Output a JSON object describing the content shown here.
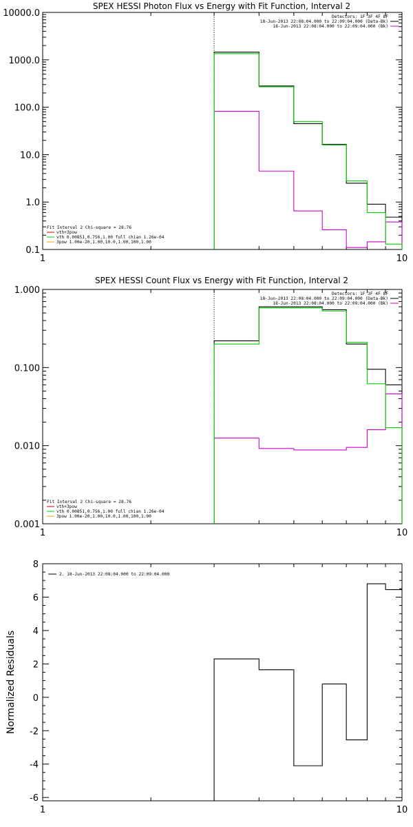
{
  "chart_data": [
    {
      "type": "line",
      "title": "SPEX HESSI Photon Flux vs Energy with Fit Function, Interval 2",
      "xscale": "log",
      "yscale": "log",
      "xlim": [
        1,
        10
      ],
      "ylim": [
        0.1,
        10000
      ],
      "xtick_labels": [
        "1",
        "10"
      ],
      "ytick_labels": [
        "0.1",
        "1.0",
        "10.0",
        "100.0",
        "1000.0",
        "10000.0"
      ],
      "vline_x": 3.0,
      "legend_top_right": [
        {
          "text": "Detectors: 1F 3F 4F 8F",
          "color": "#000000"
        },
        {
          "text": "18-Jun-2013 22:08:04.000 to 22:09:04.000 (Data-Bk)",
          "color": "#000000"
        },
        {
          "text": "18-Jun-2013 22:08:04.000 to 22:09:04.000 (Bk)",
          "color": "#cc00cc"
        }
      ],
      "legend_bottom_left": [
        {
          "text": "Fit Interval  2   Chi-square = 28.76",
          "color": "#000000"
        },
        {
          "text": "vth+3pow",
          "color": "#cc0000"
        },
        {
          "text": "vth 0.00851,0.756,1.00   full chian 1.26e-04",
          "color": "#00cc00"
        },
        {
          "text": "3pow 1.00e-20,1.00,10.0,1.00,100,1.00",
          "color": "#ddaa00"
        }
      ],
      "bin_edges": [
        3.0,
        4.0,
        5.0,
        6.0,
        7.0,
        8.0,
        9.0,
        10.0
      ],
      "series": [
        {
          "name": "Data-Bk",
          "color": "#000000",
          "values": [
            1450,
            280,
            45,
            16.5,
            2.5,
            0.9,
            0.48
          ]
        },
        {
          "name": "Bk",
          "color": "#cc00cc",
          "values": [
            82,
            4.5,
            0.65,
            0.26,
            0.11,
            0.145,
            0.38
          ]
        },
        {
          "name": "vth 0.00851,0.756,1.00   full chian 1.26e-04",
          "color": "#00cc00",
          "values": [
            1350,
            270,
            50,
            16.0,
            2.8,
            0.6,
            0.13
          ]
        }
      ]
    },
    {
      "type": "line",
      "title": "SPEX HESSI Count Flux vs Energy with Fit Function, Interval 2",
      "xscale": "log",
      "yscale": "log",
      "xlim": [
        1,
        10
      ],
      "ylim": [
        0.001,
        1
      ],
      "xtick_labels": [
        "1",
        "10"
      ],
      "ytick_labels": [
        "0.001",
        "0.010",
        "0.100",
        "1.000"
      ],
      "vline_x": 3.0,
      "legend_top_right": [
        {
          "text": "Detectors: 1F 3F 4F 8F",
          "color": "#000000"
        },
        {
          "text": "18-Jun-2013 22:08:04.000 to 22:09:04.000 (Data-Bk)",
          "color": "#000000"
        },
        {
          "text": "18-Jun-2013 22:08:04.000 to 22:09:04.000 (Bk)",
          "color": "#cc00cc"
        }
      ],
      "legend_bottom_left": [
        {
          "text": "Fit Interval  2   Chi-square = 28.76",
          "color": "#000000"
        },
        {
          "text": "vth+3pow",
          "color": "#cc0000"
        },
        {
          "text": "vth 0.00851,0.756,1.00   full chian 1.26e-04",
          "color": "#00cc00"
        },
        {
          "text": "3pow 1.00e-20,1.00,10.0,1.00,100,1.00",
          "color": "#ddaa00"
        }
      ],
      "bin_edges": [
        3.0,
        4.0,
        5.0,
        6.0,
        7.0,
        8.0,
        9.0,
        10.0
      ],
      "series": [
        {
          "name": "Data-Bk",
          "color": "#000000",
          "values": [
            0.22,
            0.6,
            0.6,
            0.55,
            0.2,
            0.095,
            0.06
          ]
        },
        {
          "name": "Bk",
          "color": "#cc00cc",
          "values": [
            0.0125,
            0.0092,
            0.0088,
            0.0088,
            0.0095,
            0.016,
            0.046
          ]
        },
        {
          "name": "vth 0.00851,0.756,1.00   full chian 1.26e-04",
          "color": "#00cc00",
          "values": [
            0.2,
            0.58,
            0.58,
            0.53,
            0.21,
            0.062,
            0.017
          ]
        }
      ]
    },
    {
      "type": "line",
      "title": "",
      "xscale": "log",
      "yscale": "linear",
      "xlim": [
        1,
        10
      ],
      "ylim": [
        -6.2,
        8
      ],
      "ylabel": "Normalized Residuals",
      "xtick_labels": [
        "1",
        "10"
      ],
      "yticks": [
        -6,
        -4,
        -2,
        0,
        2,
        4,
        6,
        8
      ],
      "ytick_labels": [
        "-6",
        "-4",
        "-2",
        "0",
        "2",
        "4",
        "6",
        "8"
      ],
      "legend_top_left": [
        {
          "text": "2. 18-Jun-2013 22:08:04.000 to 22:09:04.000",
          "color": "#000000"
        }
      ],
      "bin_edges": [
        3.0,
        4.0,
        5.0,
        6.0,
        7.0,
        8.0,
        9.0,
        10.0
      ],
      "series": [
        {
          "name": "2. 18-Jun-2013 22:08:04.000 to 22:09:04.000",
          "color": "#000000",
          "values": [
            2.3,
            1.65,
            -4.1,
            0.8,
            -2.55,
            6.8,
            6.45
          ]
        }
      ]
    }
  ]
}
